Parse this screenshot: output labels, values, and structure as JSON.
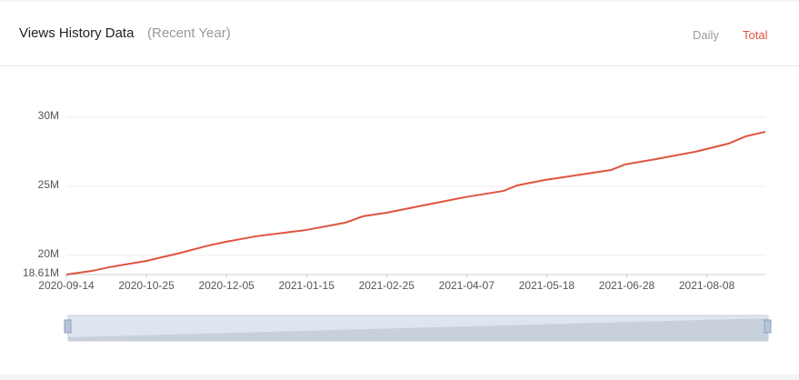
{
  "header": {
    "title": "Views History Data",
    "subtitle": "(Recent Year)",
    "tabs": [
      "Daily",
      "Total"
    ]
  },
  "chart_data": {
    "type": "line",
    "x": [
      "2020-09-14",
      "2020-09-27",
      "2020-10-06",
      "2020-10-25",
      "2020-11-12",
      "2020-11-26",
      "2020-12-05",
      "2020-12-20",
      "2021-01-15",
      "2021-02-04",
      "2021-02-13",
      "2021-02-25",
      "2021-03-18",
      "2021-04-06",
      "2021-04-26",
      "2021-05-03",
      "2021-05-17",
      "2021-06-05",
      "2021-06-20",
      "2021-06-27",
      "2021-07-13",
      "2021-08-02",
      "2021-08-19",
      "2021-08-28",
      "2021-09-07"
    ],
    "values": [
      18.61,
      18.87,
      19.14,
      19.6,
      20.2,
      20.72,
      20.99,
      21.38,
      21.84,
      22.37,
      22.83,
      23.09,
      23.68,
      24.21,
      24.67,
      25.07,
      25.46,
      25.86,
      26.18,
      26.58,
      26.97,
      27.5,
      28.09,
      28.62,
      28.95
    ],
    "color": "#e0533f",
    "xlim": [
      "2020-09-14",
      "2021-09-07"
    ],
    "xticks": [
      "2020-09-14",
      "2020-10-25",
      "2020-12-05",
      "2021-01-15",
      "2021-02-25",
      "2021-04-07",
      "2021-05-18",
      "2021-06-28",
      "2021-08-08"
    ],
    "ylim": [
      18.61,
      30
    ],
    "yticks": [
      {
        "value": 18.61,
        "label": "18.61M"
      },
      {
        "value": 20,
        "label": "20M"
      },
      {
        "value": 25,
        "label": "25M"
      },
      {
        "value": 30,
        "label": "30M"
      }
    ],
    "grid": true
  }
}
